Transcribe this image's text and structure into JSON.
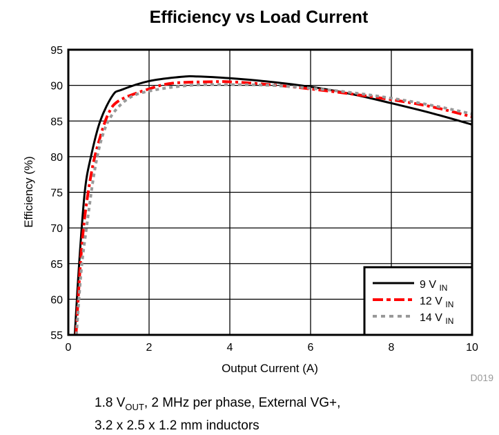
{
  "chart_data": {
    "type": "line",
    "title": "Efficiency vs Load Current",
    "xlabel": "Output Current (A)",
    "ylabel": "Efficiency (%)",
    "xlim": [
      0,
      10
    ],
    "ylim": [
      55,
      95
    ],
    "xticks": [
      0,
      2,
      4,
      6,
      8,
      10
    ],
    "yticks": [
      55,
      60,
      65,
      70,
      75,
      80,
      85,
      90,
      95
    ],
    "grid": true,
    "legend_position": "bottom-right",
    "series": [
      {
        "name": "9 V",
        "sub": "IN",
        "color": "#000000",
        "style": "solid",
        "x": [
          0.16,
          0.27,
          0.41,
          0.56,
          0.79,
          1.1,
          1.33,
          2.0,
          2.8,
          3.2,
          4,
          5,
          6,
          7,
          8,
          9,
          10
        ],
        "y": [
          55,
          65.2,
          75.2,
          80,
          85,
          88.6,
          89.4,
          90.6,
          91.2,
          91.25,
          91.0,
          90.5,
          89.8,
          88.8,
          87.5,
          86.1,
          84.5
        ]
      },
      {
        "name": "12 V",
        "sub": "IN",
        "color": "#ff0000",
        "style": "dashdot",
        "x": [
          0.19,
          0.3,
          0.41,
          0.58,
          0.75,
          0.99,
          1.27,
          2.0,
          2.58,
          3.5,
          4,
          5,
          6,
          7,
          8,
          9,
          10
        ],
        "y": [
          55,
          65,
          71.7,
          78,
          82,
          86,
          87.9,
          89.5,
          90.3,
          90.5,
          90.5,
          90.1,
          89.5,
          88.8,
          88.0,
          87.0,
          85.6
        ]
      },
      {
        "name": "14 V",
        "sub": "IN",
        "color": "#999999",
        "style": "dotted",
        "x": [
          0.2,
          0.32,
          0.45,
          0.65,
          0.85,
          1.1,
          1.5,
          2,
          3,
          4,
          5,
          6,
          7,
          8,
          9,
          10
        ],
        "y": [
          55,
          64,
          70,
          78,
          83,
          86,
          88.2,
          89.2,
          90,
          90.1,
          90,
          89.6,
          89,
          88.2,
          87.2,
          86
        ]
      }
    ],
    "figure_code": "D019"
  },
  "caption": {
    "line1_a": "1.8 V",
    "line1_sub": "OUT",
    "line1_b": ", 2 MHz per phase, External VG+,",
    "line2": "3.2 x 2.5 x 1.2 mm inductors"
  }
}
